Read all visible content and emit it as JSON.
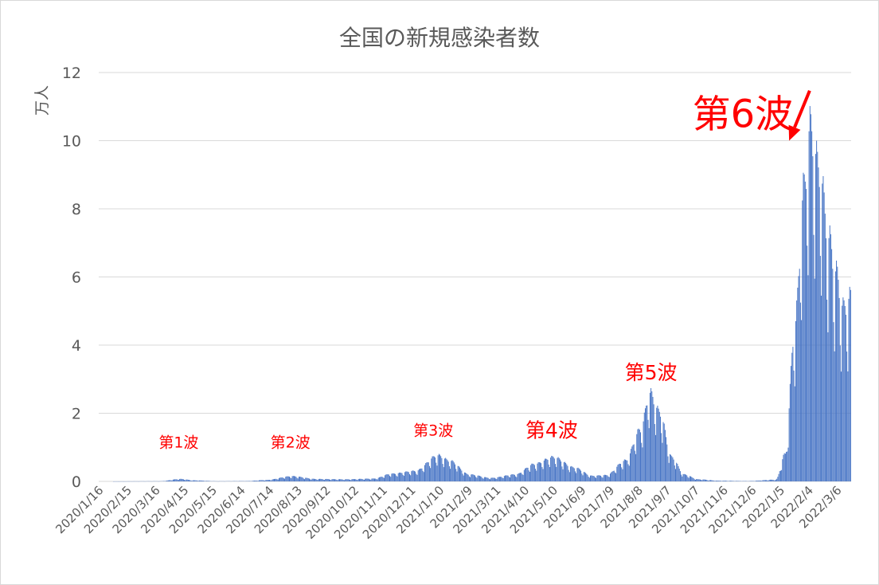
{
  "chart_data": {
    "type": "bar",
    "title": "全国の新規感染者数",
    "ylabel": "万人",
    "xlabel": "",
    "ylim": [
      0,
      12
    ],
    "yticks": [
      0,
      2,
      4,
      6,
      8,
      10,
      12
    ],
    "grid": true,
    "bar_color": "#4472c4",
    "x_start_date": "2020/1/16",
    "x_end_date": "2022/3/20",
    "xtick_labels": [
      "2020/1/16",
      "2020/2/15",
      "2020/3/16",
      "2020/4/15",
      "2020/5/15",
      "2020/6/14",
      "2020/7/14",
      "2020/8/13",
      "2020/9/12",
      "2020/10/12",
      "2020/11/11",
      "2020/12/11",
      "2021/1/10",
      "2021/2/9",
      "2021/3/11",
      "2021/4/10",
      "2021/5/10",
      "2021/6/9",
      "2021/7/9",
      "2021/8/8",
      "2021/9/7",
      "2021/10/7",
      "2021/11/6",
      "2021/12/6",
      "2022/1/5",
      "2022/2/4",
      "2022/3/6"
    ],
    "envelope": [
      [
        "2020/1/16",
        0
      ],
      [
        "2020/3/20",
        0.005
      ],
      [
        "2020/4/11",
        0.07
      ],
      [
        "2020/4/25",
        0.03
      ],
      [
        "2020/5/20",
        0.005
      ],
      [
        "2020/6/20",
        0.01
      ],
      [
        "2020/7/10",
        0.04
      ],
      [
        "2020/8/7",
        0.15
      ],
      [
        "2020/9/1",
        0.07
      ],
      [
        "2020/10/1",
        0.06
      ],
      [
        "2020/11/1",
        0.08
      ],
      [
        "2020/11/20",
        0.22
      ],
      [
        "2020/12/15",
        0.3
      ],
      [
        "2021/1/8",
        0.75
      ],
      [
        "2021/1/20",
        0.6
      ],
      [
        "2021/2/10",
        0.2
      ],
      [
        "2021/3/5",
        0.1
      ],
      [
        "2021/3/31",
        0.2
      ],
      [
        "2021/4/20",
        0.5
      ],
      [
        "2021/5/10",
        0.7
      ],
      [
        "2021/6/1",
        0.4
      ],
      [
        "2021/6/20",
        0.16
      ],
      [
        "2021/7/5",
        0.18
      ],
      [
        "2021/7/25",
        0.6
      ],
      [
        "2021/8/10",
        1.5
      ],
      [
        "2021/8/20",
        2.55
      ],
      [
        "2021/8/30",
        2.0
      ],
      [
        "2021/9/12",
        0.7
      ],
      [
        "2021/9/25",
        0.2
      ],
      [
        "2021/10/10",
        0.06
      ],
      [
        "2021/11/1",
        0.02
      ],
      [
        "2021/12/1",
        0.01
      ],
      [
        "2021/12/31",
        0.05
      ],
      [
        "2022/1/10",
        0.8
      ],
      [
        "2022/1/20",
        4.5
      ],
      [
        "2022/1/30",
        8.5
      ],
      [
        "2022/2/5",
        10.2
      ],
      [
        "2022/2/15",
        9.0
      ],
      [
        "2022/2/25",
        7.0
      ],
      [
        "2022/3/5",
        6.0
      ],
      [
        "2022/3/12",
        5.0
      ],
      [
        "2022/3/20",
        5.3
      ]
    ],
    "annotations": [
      {
        "label": "第1波",
        "x": "2020/4/9",
        "y": 1.0,
        "size": "small"
      },
      {
        "label": "第2波",
        "x": "2020/8/5",
        "y": 1.0,
        "size": "small"
      },
      {
        "label": "第3波",
        "x": "2021/1/3",
        "y": 1.35,
        "size": "small"
      },
      {
        "label": "第4波",
        "x": "2021/5/8",
        "y": 1.3,
        "size": "medium"
      },
      {
        "label": "第5波",
        "x": "2021/8/21",
        "y": 3.0,
        "size": "medium"
      },
      {
        "label": "第6波",
        "x": "2021/11/26",
        "y": 10.4,
        "size": "large",
        "arrow_to": [
          "2022/1/14",
          10.0
        ]
      }
    ]
  }
}
